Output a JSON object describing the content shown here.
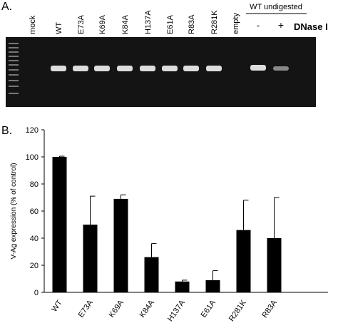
{
  "panel_a": {
    "label": "A.",
    "lanes": [
      "mock",
      "WT",
      "E73A",
      "K69A",
      "K84A",
      "H137A",
      "E61A",
      "R83A",
      "R281K",
      "empty"
    ],
    "group_label": "WT undigested",
    "dnase_lanes": [
      "-",
      "+"
    ],
    "dnase_label": "DNase I"
  },
  "chart_data": {
    "type": "bar",
    "panel_label": "B.",
    "y_label": "V-Ag expression (% of control)",
    "categories": [
      "WT",
      "E73A",
      "K69A",
      "K84A",
      "H137A",
      "E61A",
      "R281K",
      "R83A"
    ],
    "values": [
      100,
      50,
      69,
      26,
      8,
      9,
      46,
      40
    ],
    "errors": [
      0.5,
      21,
      3,
      10,
      1,
      7,
      22,
      30
    ],
    "color": "#000000",
    "ylim": [
      0,
      120
    ],
    "yticks": [
      0,
      20,
      40,
      60,
      80,
      100,
      120
    ]
  }
}
